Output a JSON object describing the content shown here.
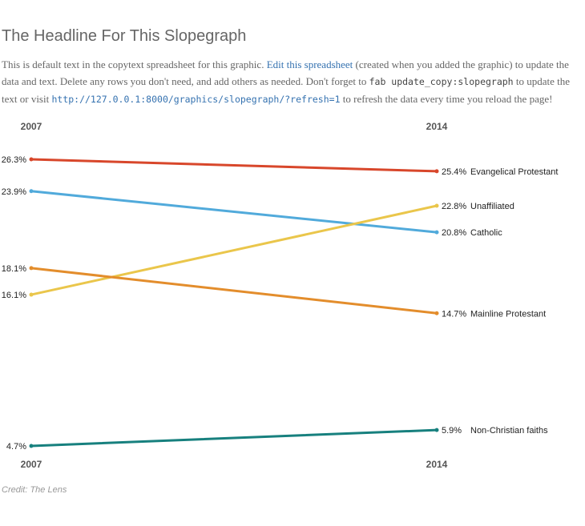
{
  "headline": "The Headline For This Slopegraph",
  "intro": {
    "text_1": "This is default text in the copytext spreadsheet for this graphic. ",
    "link_label": "Edit this spreadsheet",
    "text_2": " (created when you added the graphic) to update the data and text. Delete any rows you don't need, and add others as needed. Don't forget to ",
    "command": "fab update_copy:slopegraph",
    "text_3": " to update the text or visit ",
    "refresh_url": "http://127.0.0.1:8000/graphics/slopegraph/?refresh=1",
    "text_4": " to refresh the data every time you reload the page!"
  },
  "credit": "Credit: The Lens",
  "chart_data": {
    "type": "line",
    "subtype": "slopegraph",
    "x": [
      "2007",
      "2014"
    ],
    "ylim": [
      4.7,
      26.3
    ],
    "grid": false,
    "legend": "none",
    "value_suffix": "%",
    "series": [
      {
        "name": "Evangelical Protestant",
        "values": [
          26.3,
          25.4
        ],
        "color": "#d8472b"
      },
      {
        "name": "Catholic",
        "values": [
          23.9,
          20.8
        ],
        "color": "#51aadb"
      },
      {
        "name": "Unaffiliated",
        "values": [
          16.1,
          22.8
        ],
        "color": "#eac64b"
      },
      {
        "name": "Mainline Protestant",
        "values": [
          18.1,
          14.7
        ],
        "color": "#e38d2c"
      },
      {
        "name": "Non-Christian faiths",
        "values": [
          4.7,
          5.9
        ],
        "color": "#17807e"
      }
    ]
  }
}
